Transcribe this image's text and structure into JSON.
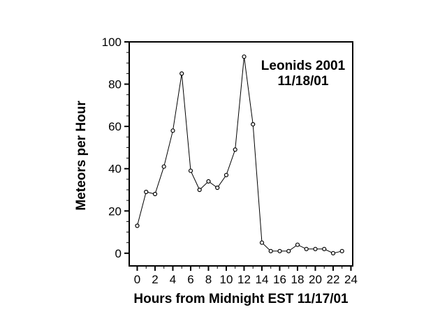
{
  "chart_data": {
    "type": "line",
    "title": "",
    "annotation_line1": "Leonids 2001",
    "annotation_line2": "11/18/01",
    "xlabel": "Hours from Midnight EST 11/17/01",
    "ylabel": "Meteors per Hour",
    "series_name": "meteors-per-hour",
    "x": [
      0,
      1,
      2,
      3,
      4,
      5,
      6,
      7,
      8,
      9,
      10,
      11,
      12,
      13,
      14,
      15,
      16,
      17,
      18,
      19,
      20,
      21,
      22,
      23
    ],
    "values": [
      13,
      29,
      28,
      41,
      58,
      85,
      39,
      30,
      34,
      31,
      37,
      49,
      93,
      61,
      5,
      1,
      1,
      1,
      4,
      2,
      2,
      2,
      0,
      1
    ],
    "x_ticks_major": [
      0,
      2,
      4,
      6,
      8,
      10,
      12,
      14,
      16,
      18,
      20,
      22,
      24
    ],
    "x_ticks_minor": [
      1,
      3,
      5,
      7,
      9,
      11,
      13,
      15,
      17,
      19,
      21,
      23
    ],
    "y_ticks_major": [
      0,
      20,
      40,
      60,
      80,
      100
    ],
    "y_minor_step": 5,
    "xlim": [
      -0.9,
      24.2
    ],
    "ylim": [
      -6,
      100
    ],
    "grid": false,
    "legend": "none",
    "marker": "open-circle",
    "line_color": "#000000",
    "marker_fill": "#ffffff",
    "axis_color": "#000000",
    "text_color": "#000000",
    "background": "#ffffff"
  }
}
